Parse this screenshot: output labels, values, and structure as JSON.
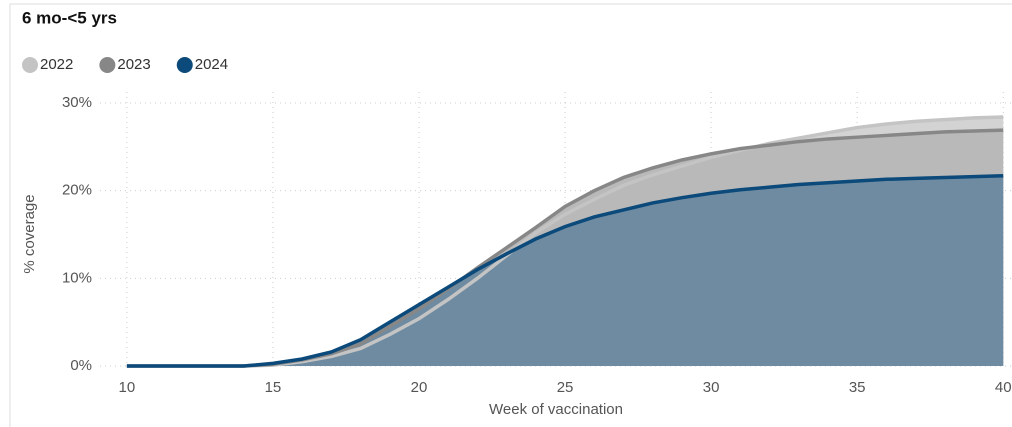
{
  "chart_data": {
    "type": "area",
    "title": "6 mo-<5 yrs",
    "x_label": "Week of vaccination",
    "y_label": "% coverage",
    "x": [
      10,
      11,
      12,
      13,
      14,
      15,
      16,
      17,
      18,
      19,
      20,
      21,
      22,
      23,
      24,
      25,
      26,
      27,
      28,
      29,
      30,
      31,
      32,
      33,
      34,
      35,
      36,
      37,
      38,
      39,
      40
    ],
    "series": [
      {
        "name": "2022",
        "color": "#c4c4c4",
        "fill": "#d3d3d3",
        "values": [
          0,
          0,
          0,
          0,
          0,
          0.1,
          0.5,
          1.1,
          2.0,
          3.6,
          5.4,
          7.6,
          10.0,
          12.6,
          15.2,
          17.3,
          19.0,
          20.6,
          21.8,
          22.8,
          23.8,
          24.6,
          25.4,
          26.0,
          26.6,
          27.2,
          27.6,
          27.9,
          28.1,
          28.3,
          28.4
        ]
      },
      {
        "name": "2023",
        "color": "#878787",
        "fill": "#b9b9b9",
        "values": [
          0,
          0,
          0,
          0,
          0,
          0.2,
          0.7,
          1.4,
          2.5,
          4.5,
          6.5,
          8.8,
          11.2,
          13.5,
          15.8,
          18.2,
          20.0,
          21.5,
          22.6,
          23.5,
          24.2,
          24.8,
          25.2,
          25.6,
          25.9,
          26.1,
          26.3,
          26.5,
          26.7,
          26.8,
          26.9
        ]
      },
      {
        "name": "2024",
        "color": "#0b4a7a",
        "fill": "#6e8ba1",
        "values": [
          0,
          0,
          0,
          0,
          0,
          0.3,
          0.8,
          1.6,
          3.0,
          5.0,
          7.0,
          9.0,
          11.0,
          12.8,
          14.5,
          15.9,
          17.0,
          17.8,
          18.6,
          19.2,
          19.7,
          20.1,
          20.4,
          20.7,
          20.9,
          21.1,
          21.3,
          21.4,
          21.5,
          21.6,
          21.7
        ]
      }
    ],
    "xlim": [
      9.08,
      40.3
    ],
    "xticks": [
      10,
      15,
      20,
      25,
      30,
      35,
      40
    ],
    "ylim": [
      0,
      30
    ],
    "yticks": [
      {
        "value": 0,
        "label": "0%"
      },
      {
        "value": 10,
        "label": "10%"
      },
      {
        "value": 20,
        "label": "20%"
      },
      {
        "value": 30,
        "label": "30%"
      }
    ],
    "grid": true
  }
}
